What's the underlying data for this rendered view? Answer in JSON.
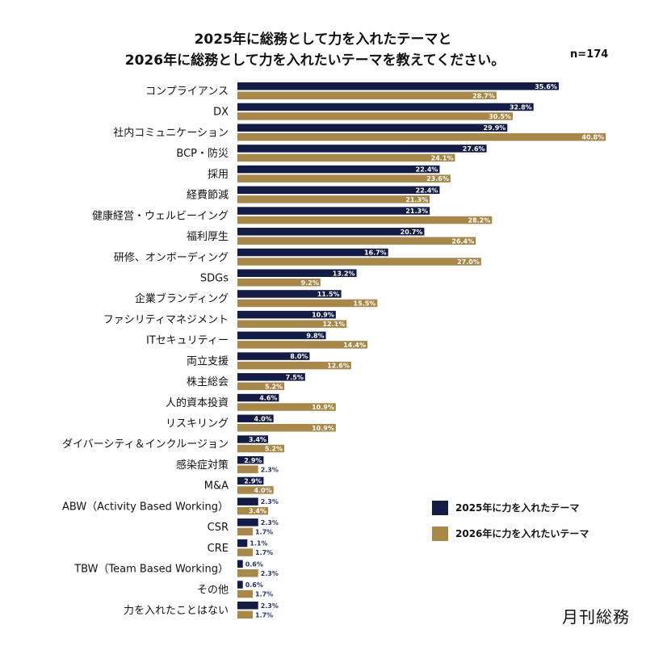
{
  "chart_data": {
    "type": "bar",
    "orientation": "horizontal",
    "title_line1": "2025年に総務として力を入れたテーマと",
    "title_line2": "2026年に総務として力を入れたいテーマを教えてください。",
    "sample": "n=174",
    "categories": [
      "コンプライアンス",
      "DX",
      "社内コミュニケーション",
      "BCP・防災",
      "採用",
      "経費節減",
      "健康経営・ウェルビーイング",
      "福利厚生",
      "研修、オンボーディング",
      "SDGs",
      "企業ブランディング",
      "ファシリティマネジメント",
      "ITセキュリティー",
      "両立支援",
      "株主総会",
      "人的資本投資",
      "リスキリング",
      "ダイバーシティ＆インクルージョン",
      "感染症対策",
      "M&A",
      "ABW（Activity Based Working）",
      "CSR",
      "CRE",
      "TBW（Team Based Working）",
      "その他",
      "力を入れたことはない"
    ],
    "series": [
      {
        "name": "2025年に力を入れたテーマ",
        "color": "#141c45",
        "values": [
          35.6,
          32.8,
          29.9,
          27.6,
          22.4,
          22.4,
          21.3,
          20.7,
          16.7,
          13.2,
          11.5,
          10.9,
          9.8,
          8.0,
          7.5,
          4.6,
          4.0,
          3.4,
          2.9,
          2.9,
          2.3,
          2.3,
          1.1,
          0.6,
          0.6,
          2.3
        ]
      },
      {
        "name": "2026年に力を入れたいテーマ",
        "color": "#a8874a",
        "values": [
          28.7,
          30.5,
          40.8,
          24.1,
          23.6,
          21.3,
          28.2,
          26.4,
          27.0,
          9.2,
          15.5,
          12.1,
          14.4,
          12.6,
          5.2,
          10.9,
          10.9,
          5.2,
          2.3,
          4.0,
          3.4,
          1.7,
          1.7,
          2.3,
          1.7,
          1.7
        ]
      }
    ],
    "value_format": "%",
    "legend_position": "bottom-right",
    "grid": false
  },
  "logo": "月刊総務"
}
